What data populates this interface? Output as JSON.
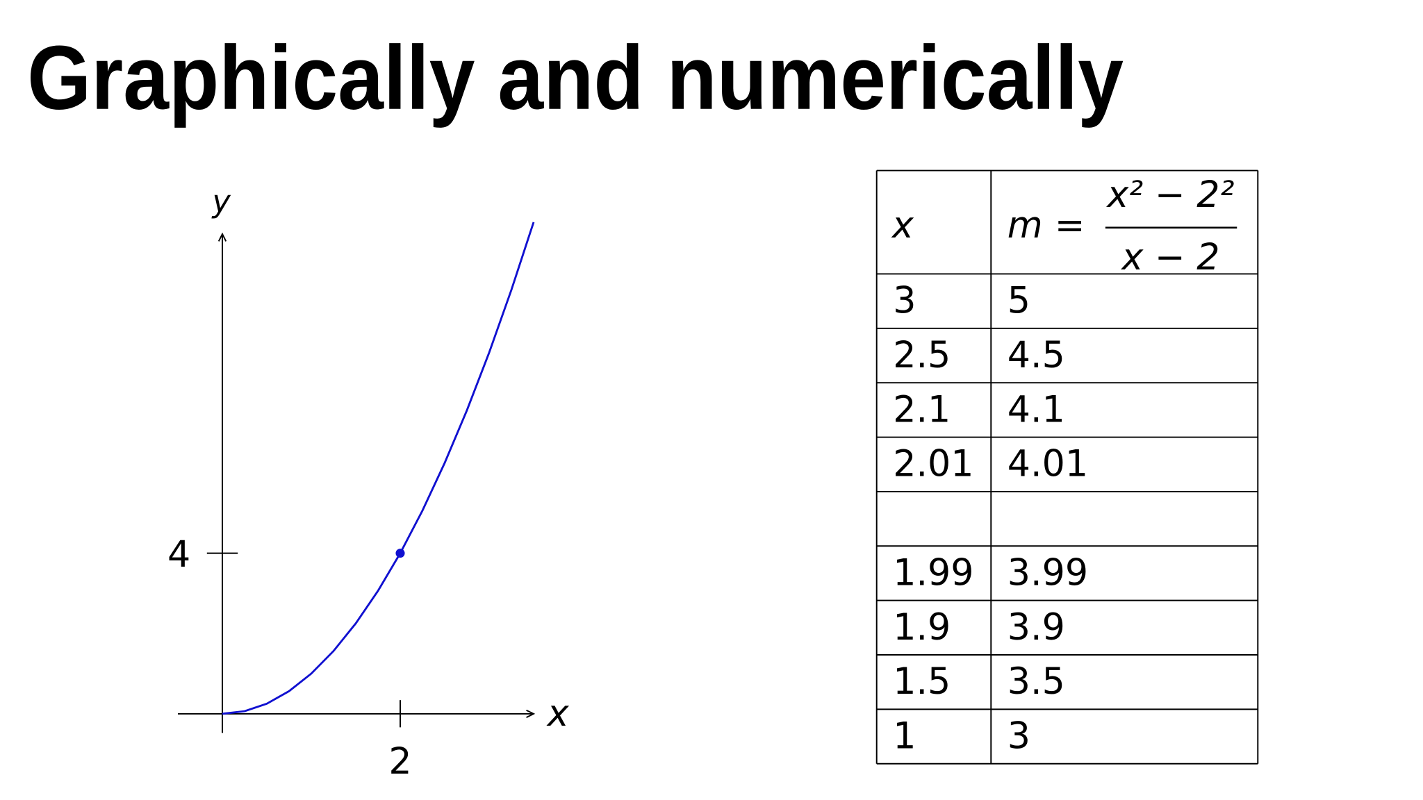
{
  "title": "Graphically and numerically",
  "chart_data": {
    "type": "line",
    "x_label": "x",
    "y_label": "y",
    "x": [
      0,
      0.25,
      0.5,
      0.75,
      1,
      1.25,
      1.5,
      1.75,
      2,
      2.25,
      2.5,
      2.75,
      3,
      3.25,
      3.5
    ],
    "values": [
      0,
      0.0625,
      0.25,
      0.5625,
      1,
      1.5625,
      2.25,
      3.0625,
      4,
      5.0625,
      6.25,
      7.5625,
      9,
      10.5625,
      12.25
    ],
    "color": "#1010d0",
    "highlight": {
      "x": 2,
      "y": 4
    },
    "xlim": [
      -0.5,
      3.5
    ],
    "ylim": [
      -0.5,
      12
    ],
    "xticks": [
      2
    ],
    "yticks": [
      4
    ]
  },
  "table": {
    "header": {
      "x": "x",
      "m": "m",
      "equals": "=",
      "numerator": "x² − 2²",
      "denominator": "x − 2"
    },
    "rows": [
      [
        "3",
        "5"
      ],
      [
        "2.5",
        "4.5"
      ],
      [
        "2.1",
        "4.1"
      ],
      [
        "2.01",
        "4.01"
      ],
      null,
      [
        "1.99",
        "3.99"
      ],
      [
        "1.9",
        "3.9"
      ],
      [
        "1.5",
        "3.5"
      ],
      [
        "1",
        "3"
      ]
    ]
  }
}
